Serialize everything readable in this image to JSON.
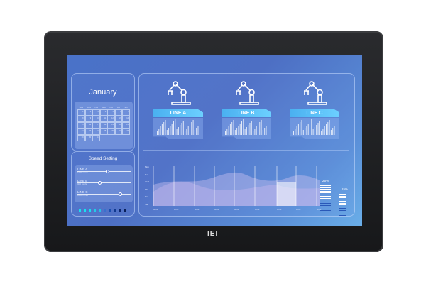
{
  "brand_logo": "IEI",
  "calendar": {
    "month": "January",
    "weekdays": [
      "SUN",
      "MON",
      "TUE",
      "WED",
      "THU",
      "FRI",
      "SAT"
    ],
    "days": [
      "1",
      "2",
      "3",
      "4",
      "5",
      "6",
      "7",
      "8",
      "9",
      "10",
      "11",
      "12",
      "13",
      "14",
      "15",
      "16",
      "17",
      "18",
      "19",
      "20",
      "21",
      "22",
      "23",
      "24",
      "25",
      "26",
      "27",
      "28",
      "29",
      "30",
      "31"
    ]
  },
  "speed": {
    "title": "Speed Setting",
    "lines": [
      {
        "name": "LINE A",
        "value": "1000 mm/s",
        "level": 0.55
      },
      {
        "name": "LINE B",
        "value": "900 mm/s",
        "level": 0.4
      },
      {
        "name": "LINE C",
        "value": "1000 mm/s",
        "level": 0.8
      }
    ]
  },
  "machines": [
    {
      "label": "LINE A",
      "icon": "robot-arm-icon"
    },
    {
      "label": "LINE B",
      "icon": "robot-arm-icon"
    },
    {
      "label": "LINE C",
      "icon": "robot-arm-icon"
    }
  ],
  "chart_data": {
    "type": "area",
    "y_ticks": [
      "Mon",
      "Tue",
      "Wed",
      "Thu",
      "Fri",
      "Sat"
    ],
    "x_ticks": [
      "00:00",
      "00:00",
      "00:00",
      "00:00",
      "00:00",
      "00:00",
      "00:00",
      "00:00",
      "00:00"
    ],
    "gauges": [
      {
        "label": "25%",
        "value": 25
      },
      {
        "label": "15%",
        "value": 15
      }
    ]
  },
  "colors": {
    "accent": "#18e0f0",
    "screen_bg": "#4d6fc4",
    "tag": "#5cc0f8"
  }
}
